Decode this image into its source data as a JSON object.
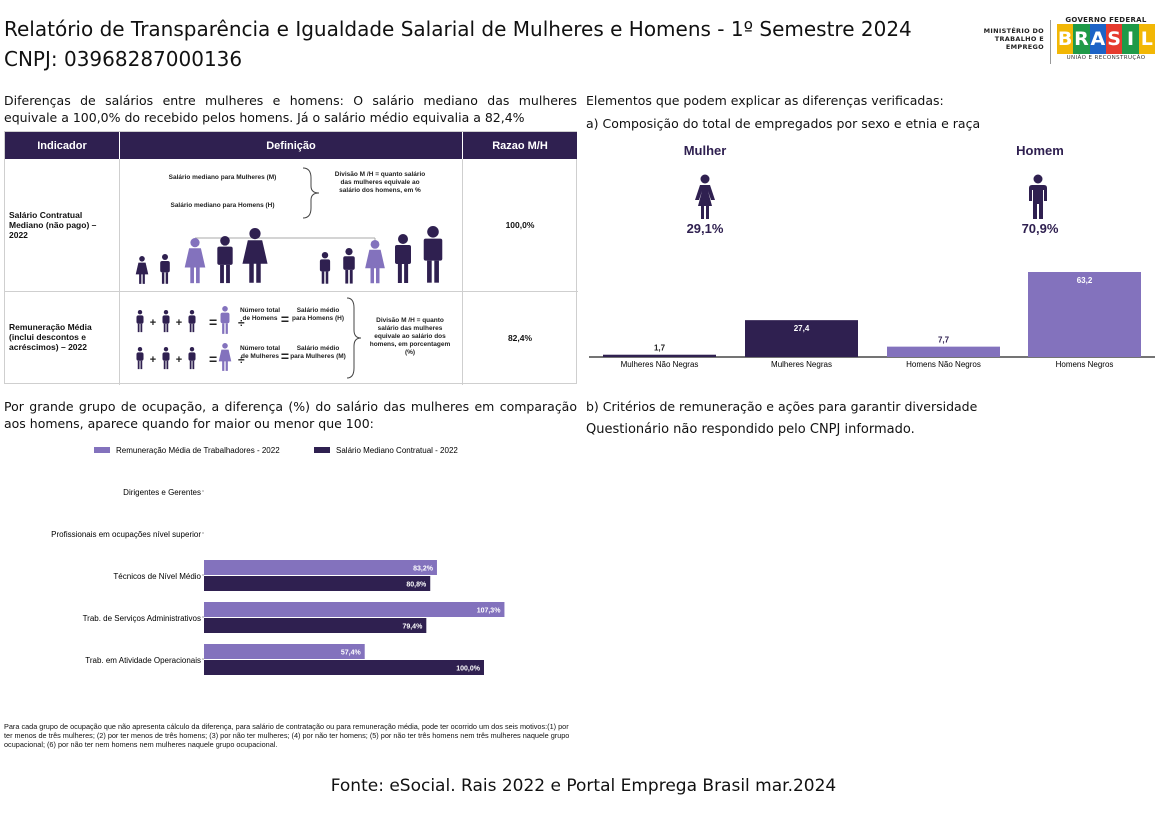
{
  "header": {
    "title_line1": "Relatório de Transparência e Igualdade Salarial de Mulheres e Homens - 1º Semestre 2024",
    "title_line2": "CNPJ: 03968287000136",
    "logo_ministry": "MINISTÉRIO DO TRABALHO E EMPREGO",
    "logo_gov": "GOVERNO FEDERAL",
    "logo_word": "BRASIL",
    "logo_sub": "UNIÃO E RECONSTRUÇÃO"
  },
  "salary_diff": {
    "intro_line1": "Diferenças de salários entre mulheres e homens: O salário mediano das mulheres",
    "intro_line2": "equivale a 100,0% do recebido pelos homens. Já o salário médio equivalia a 82,4%"
  },
  "table": {
    "headers": [
      "Indicador",
      "Definição",
      "Razao M/H"
    ],
    "row1": {
      "indicator": "Salário Contratual Mediano (não pago) – 2022",
      "def_women": "Salário mediano para Mulheres (M)",
      "def_men": "Salário mediano para Homens (H)",
      "def_division": "Divisão M /H = quanto salário das mulheres equivale ao salário dos homens, em %",
      "ratio": "100,0%"
    },
    "row2": {
      "indicator": "Remuneração Média (inclui descontos e acréscimos) – 2022",
      "num_total_men": "Número total de Homens",
      "avg_salary_men": "Salário médio para Homens (H)",
      "num_total_women": "Número total de Mulheres",
      "avg_salary_women": "Salário médio para Mulheres (M)",
      "def_division": "Divisão M /H = quanto salário das mulheres equivale ao salário dos homens, em porcentagem (%)",
      "ratio": "82,4%"
    }
  },
  "occupation": {
    "intro_line1": "Por grande grupo de ocupação, a diferença (%) do salário das mulheres em comparação",
    "intro_line2": "aos homens, aparece quando for maior ou menor que 100:",
    "footnote": "Para cada grupo de ocupação que não apresenta cálculo da diferença, para salário de contratação ou para remuneração média, pode ter ocorrido um dos seis motivos:(1) por ter menos de três mulheres; (2) por ter menos de três homens; (3) por não ter mulheres; (4) por não ter homens; (5) por não ter três homens nem três mulheres naquele grupo ocupacional; (6) por não ter nem homens nem mulheres naquele grupo ocupacional."
  },
  "explain": {
    "heading": "Elementos que podem explicar as diferenças verificadas:",
    "sub_a": "a) Composição do total de empregados por sexo e etnia e raça",
    "women_label": "Mulher",
    "women_pct": "29,1%",
    "men_label": "Homem",
    "men_pct": "70,9%",
    "sub_b": "b) Critérios de remuneração e ações para garantir diversidade",
    "b_text": "Questionário não respondido pelo CNPJ informado."
  },
  "source": "Fonte: eSocial. Rais 2022 e Portal Emprega Brasil mar.2024",
  "colors": {
    "dark_purple": "#2f2050",
    "light_purple": "#8372bd",
    "header_bg": "#2f2050"
  },
  "chart_data": [
    {
      "type": "bar",
      "orientation": "horizontal",
      "categories": [
        "Dirigentes e Gerentes",
        "Profissionais em ocupações nível superior",
        "Técnicos de Nível Médio",
        "Trab. de Serviços Administrativos",
        "Trab. em Atividade Operacionais"
      ],
      "series": [
        {
          "name": "Remuneração Média de Trabalhadores - 2022",
          "values": [
            null,
            null,
            83.2,
            107.3,
            57.4
          ],
          "labels": [
            "",
            "",
            "83,2%",
            "107,3%",
            "57,4%"
          ],
          "color": "#8372bd"
        },
        {
          "name": "Salário Mediano Contratual - 2022",
          "values": [
            null,
            null,
            80.8,
            79.4,
            100.0
          ],
          "labels": [
            "",
            "",
            "80,8%",
            "79,4%",
            "100,0%"
          ],
          "color": "#2f2050"
        }
      ],
      "legend": "top"
    },
    {
      "type": "bar",
      "categories": [
        "Mulheres Não Negras",
        "Mulheres Negras",
        "Homens Não Negros",
        "Homens Negros"
      ],
      "values": [
        1.7,
        27.4,
        7.7,
        63.2
      ],
      "labels": [
        "1,7",
        "27,4",
        "7,7",
        "63,2"
      ],
      "colors": [
        "#2f2050",
        "#2f2050",
        "#8372bd",
        "#8372bd"
      ]
    }
  ]
}
